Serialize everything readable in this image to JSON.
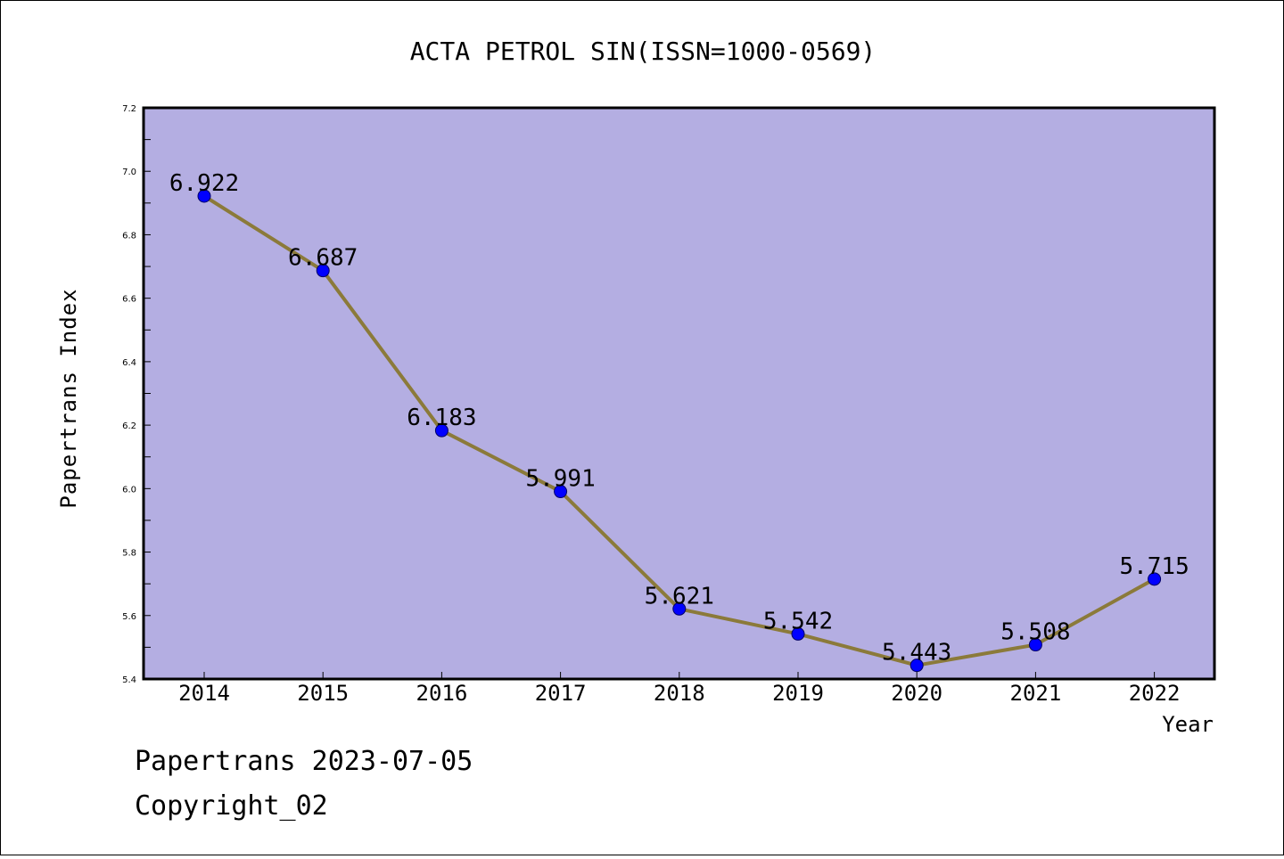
{
  "chart_data": {
    "type": "line",
    "title": "ACTA PETROL SIN(ISSN=1000-0569)",
    "xlabel": "Year",
    "ylabel": "Papertrans Index",
    "x": [
      "2014",
      "2015",
      "2016",
      "2017",
      "2018",
      "2019",
      "2020",
      "2021",
      "2022"
    ],
    "values": [
      6.922,
      6.687,
      6.183,
      5.991,
      5.621,
      5.542,
      5.443,
      5.508,
      5.715
    ],
    "data_labels": [
      "6.922",
      "6.687",
      "6.183",
      "5.991",
      "5.621",
      "5.542",
      "5.443",
      "5.508",
      "5.715"
    ],
    "ylim": [
      5.4,
      7.2
    ],
    "yticks": [
      "5.4",
      "5.6",
      "5.8",
      "6.0",
      "6.2",
      "6.4",
      "6.6",
      "6.8",
      "7.0",
      "7.2"
    ],
    "grid": false,
    "colors": {
      "plot_background": "#b4aee2",
      "line": "#8b7a3a",
      "marker": "#0000ff"
    }
  },
  "footer": {
    "line1": "Papertrans 2023-07-05",
    "line2": "Copyright_02"
  }
}
